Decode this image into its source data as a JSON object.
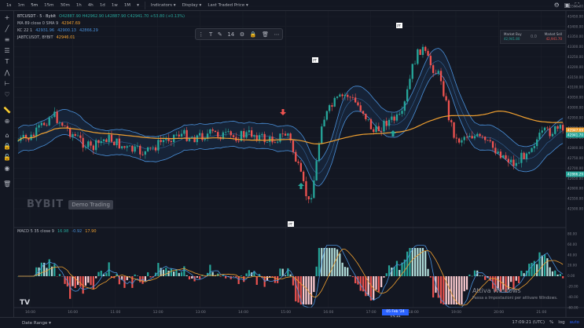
{
  "toolbar": {
    "timeframes": [
      "1s",
      "1m",
      "5m",
      "15m",
      "30m",
      "1h",
      "4h",
      "1d",
      "1w",
      "1M"
    ],
    "active_timeframe": "5m",
    "indicators_label": "Indicators",
    "display_label": "Display",
    "price_type_label": "Last Traded Price"
  },
  "legend": {
    "symbol": "BTCUSDT · 5 · BybIt",
    "ohlc": "O42887.90 H42962.90 L42887.90 C42941.70 +53.80 (+0.13%)",
    "ma_label": "MA 89 close 0 SMA 9",
    "ma_value": "42947.69",
    "kc_label": "KC 22 1",
    "kc_values": [
      "42931.96",
      "42900.13",
      "42866.29"
    ],
    "jabt_label": "JABTCUSDT, BYBIT",
    "jabt_value": "42946.01"
  },
  "drawing_toolbar": {
    "count": "14"
  },
  "order_box": {
    "buy_label": "Market Buy",
    "buy_price": "42,941.80",
    "qty": "0.0",
    "sell_label": "Market Sell",
    "sell_price": "42,941.70"
  },
  "watermark": {
    "logo": "BYBIT",
    "badge": "Demo Trading"
  },
  "macd": {
    "label": "MACD 5 35 close 9",
    "values": [
      "16.98",
      "-0.92",
      "17.90"
    ]
  },
  "price_axis": {
    "labels": [
      "43500.00",
      "43450.00",
      "43400.00",
      "43350.00",
      "43300.00",
      "43250.00",
      "43200.00",
      "43150.00",
      "43100.00",
      "43050.00",
      "43000.00",
      "42950.00",
      "42900.00",
      "42850.00",
      "42800.00",
      "42750.00",
      "42700.00",
      "42650.00",
      "42600.00",
      "42550.00",
      "42500.00"
    ],
    "tags": [
      {
        "text": "42947.69",
        "color": "#f0a030"
      },
      {
        "text": "42941.70",
        "color": "#26a69a"
      },
      {
        "text": "42866.29",
        "color": "#26a69a"
      }
    ]
  },
  "macd_axis": [
    "80.00",
    "60.00",
    "40.00",
    "20.00",
    "0.00",
    "-20.00",
    "-40.00",
    "-60.00"
  ],
  "time_axis": [
    "16:00",
    "16:00",
    "11:00",
    "12:00",
    "13:00",
    "14:00",
    "15:00",
    "16:00",
    "17:00",
    "18:00",
    "19:00",
    "20:00",
    "21:00"
  ],
  "time_tag": "05 Feb '24  17:40",
  "markers": {
    "pt_label": "PT"
  },
  "bottom": {
    "date_range": "Date Range",
    "clock": "17:09:21 (UTC)",
    "pct": "%",
    "log": "log",
    "auto": "auto"
  },
  "activation": {
    "title": "Attiva Windows",
    "subtitle": "Passa a Impostazioni per attivare Windows."
  },
  "logo_text": "TV",
  "colors": {
    "bull": "#26a69a",
    "bear": "#ef5350",
    "ma": "#f0a030",
    "kc": "#4a90d9"
  }
}
